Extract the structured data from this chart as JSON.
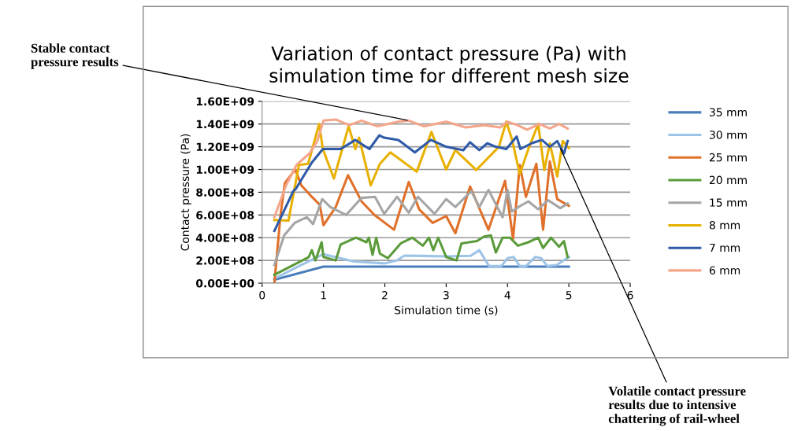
{
  "chart_data": {
    "type": "line",
    "title": "Variation of contact pressure (Pa) with\nsimulation time for different mesh size",
    "xlabel": "Simulation time (s)",
    "ylabel": "Contact pressure (Pa)",
    "xlim": [
      0,
      6
    ],
    "xticks": [
      0,
      1,
      2,
      3,
      4,
      5,
      6
    ],
    "ylim": [
      0,
      1600000000
    ],
    "yticks": [
      {
        "value": 0,
        "label": "0.00E+00"
      },
      {
        "value": 200000000,
        "label": "2.00E+08"
      },
      {
        "value": 400000000,
        "label": "4.00E+08"
      },
      {
        "value": 600000000,
        "label": "6.00E+08"
      },
      {
        "value": 800000000,
        "label": "8.00E+08"
      },
      {
        "value": 1000000000,
        "label": "1.00E+09"
      },
      {
        "value": 1200000000,
        "label": "1.20E+09"
      },
      {
        "value": 1400000000,
        "label": "1.40E+09"
      },
      {
        "value": 1600000000,
        "label": "1.60E+09"
      }
    ],
    "grid": "y",
    "legend": "right",
    "marker": "none",
    "line_style": "solid",
    "annotations": [
      {
        "text": "Stable contact\npressure results",
        "x": 2.4,
        "y": 1430000000
      },
      {
        "text": "Volatile contact pressure\nresults due to intensive\nchattering of rail-wheel",
        "x": 4.85,
        "y": 1200000000
      }
    ],
    "series": [
      {
        "name": "35 mm",
        "color": "#4a7ebb",
        "x": [
          0.2,
          1.0,
          1.5,
          2.0,
          3.0,
          4.0,
          5.0
        ],
        "values": [
          30000000,
          146000000,
          145000000,
          146000000,
          145000000,
          146000000,
          145000000
        ]
      },
      {
        "name": "30 mm",
        "color": "#9dc3e6",
        "x": [
          0.2,
          0.6,
          1.0,
          1.5,
          2.0,
          2.2,
          2.32,
          2.6,
          3.0,
          3.4,
          3.54,
          3.7,
          3.9,
          4.0,
          4.1,
          4.2,
          4.3,
          4.45,
          4.55,
          4.65,
          4.8,
          5.0
        ],
        "values": [
          40000000,
          150000000,
          255000000,
          190000000,
          174000000,
          200000000,
          243000000,
          240000000,
          235000000,
          240000000,
          290000000,
          150000000,
          150000000,
          220000000,
          230000000,
          150000000,
          150000000,
          230000000,
          220000000,
          150000000,
          160000000,
          230000000
        ]
      },
      {
        "name": "25 mm",
        "color": "#e0702a",
        "x": [
          0.2,
          0.3,
          0.37,
          0.54,
          0.64,
          0.81,
          0.94,
          1.0,
          1.2,
          1.4,
          1.62,
          1.83,
          2.15,
          2.39,
          2.56,
          2.78,
          3.0,
          3.15,
          3.39,
          3.69,
          3.96,
          4.09,
          4.2,
          4.3,
          4.47,
          4.58,
          4.69,
          4.81,
          5.0
        ],
        "values": [
          0,
          600000000,
          880000000,
          1000000000,
          860000000,
          760000000,
          690000000,
          510000000,
          670000000,
          950000000,
          720000000,
          600000000,
          470000000,
          890000000,
          650000000,
          530000000,
          590000000,
          440000000,
          850000000,
          470000000,
          900000000,
          390000000,
          1040000000,
          760000000,
          1050000000,
          470000000,
          1070000000,
          740000000,
          680000000
        ]
      },
      {
        "name": "20 mm",
        "color": "#5b9b3a",
        "x": [
          0.2,
          0.76,
          0.81,
          0.87,
          0.97,
          1.0,
          1.2,
          1.28,
          1.53,
          1.7,
          1.74,
          1.8,
          1.86,
          1.92,
          2.05,
          2.26,
          2.45,
          2.62,
          2.72,
          2.79,
          2.87,
          3.0,
          3.17,
          3.25,
          3.5,
          3.62,
          3.73,
          3.81,
          3.92,
          4.04,
          4.17,
          4.34,
          4.5,
          4.58,
          4.71,
          4.84,
          4.92,
          4.98
        ],
        "values": [
          74000000,
          230000000,
          290000000,
          200000000,
          360000000,
          230000000,
          200000000,
          340000000,
          400000000,
          360000000,
          400000000,
          250000000,
          400000000,
          260000000,
          220000000,
          350000000,
          400000000,
          330000000,
          400000000,
          290000000,
          400000000,
          230000000,
          200000000,
          350000000,
          370000000,
          410000000,
          420000000,
          270000000,
          400000000,
          400000000,
          330000000,
          360000000,
          400000000,
          310000000,
          400000000,
          320000000,
          370000000,
          230000000
        ]
      },
      {
        "name": "15 mm",
        "color": "#a5a5a5",
        "x": [
          0.2,
          0.36,
          0.53,
          0.73,
          0.83,
          0.98,
          1.11,
          1.37,
          1.62,
          1.84,
          1.99,
          2.2,
          2.39,
          2.54,
          2.81,
          3.0,
          3.15,
          3.41,
          3.54,
          3.69,
          3.92,
          4.0,
          4.07,
          4.21,
          4.34,
          4.5,
          4.66,
          4.86,
          4.98
        ],
        "values": [
          160000000,
          420000000,
          530000000,
          580000000,
          520000000,
          740000000,
          670000000,
          600000000,
          750000000,
          760000000,
          610000000,
          760000000,
          620000000,
          760000000,
          610000000,
          740000000,
          670000000,
          810000000,
          670000000,
          820000000,
          580000000,
          820000000,
          630000000,
          680000000,
          720000000,
          650000000,
          730000000,
          660000000,
          700000000
        ]
      },
      {
        "name": "8 mm",
        "color": "#e8b000",
        "x": [
          0.2,
          0.43,
          0.6,
          0.75,
          0.93,
          0.99,
          1.17,
          1.41,
          1.52,
          1.58,
          1.77,
          1.92,
          2.09,
          2.52,
          2.76,
          3.0,
          3.15,
          3.49,
          3.86,
          3.98,
          4.07,
          4.2,
          4.34,
          4.5,
          4.6,
          4.69,
          4.81,
          4.9,
          5.0
        ],
        "values": [
          555000000,
          550000000,
          1040000000,
          1050000000,
          1400000000,
          1180000000,
          920000000,
          1380000000,
          1180000000,
          1280000000,
          860000000,
          1050000000,
          1150000000,
          980000000,
          1330000000,
          1000000000,
          1170000000,
          995000000,
          1200000000,
          1420000000,
          1270000000,
          960000000,
          1180000000,
          1400000000,
          995000000,
          1230000000,
          940000000,
          1250000000,
          1190000000
        ]
      },
      {
        "name": "7 mm",
        "color": "#2e5aa8",
        "x": [
          0.2,
          0.51,
          0.55,
          0.81,
          0.99,
          1.28,
          1.52,
          1.75,
          1.91,
          1.99,
          2.22,
          2.49,
          2.75,
          3.0,
          3.28,
          3.39,
          3.54,
          3.67,
          3.81,
          3.98,
          4.15,
          4.21,
          4.39,
          4.56,
          4.69,
          4.81,
          4.92,
          4.98
        ],
        "values": [
          460000000,
          810000000,
          830000000,
          1060000000,
          1180000000,
          1180000000,
          1260000000,
          1180000000,
          1300000000,
          1280000000,
          1260000000,
          1150000000,
          1260000000,
          1200000000,
          1170000000,
          1240000000,
          1170000000,
          1230000000,
          1200000000,
          1180000000,
          1290000000,
          1180000000,
          1230000000,
          1260000000,
          1200000000,
          1250000000,
          1140000000,
          1250000000
        ]
      },
      {
        "name": "6 mm",
        "color": "#f4a68a",
        "x": [
          0.2,
          0.39,
          0.56,
          0.77,
          0.9,
          1.0,
          1.2,
          1.42,
          1.62,
          1.88,
          2.22,
          2.39,
          2.64,
          3.0,
          3.32,
          3.62,
          3.88,
          4.0,
          4.16,
          4.32,
          4.52,
          4.69,
          4.84,
          4.98
        ],
        "values": [
          580000000,
          860000000,
          1040000000,
          1140000000,
          1250000000,
          1430000000,
          1440000000,
          1390000000,
          1430000000,
          1380000000,
          1420000000,
          1430000000,
          1380000000,
          1420000000,
          1370000000,
          1390000000,
          1370000000,
          1420000000,
          1390000000,
          1350000000,
          1400000000,
          1360000000,
          1400000000,
          1360000000
        ]
      }
    ]
  }
}
